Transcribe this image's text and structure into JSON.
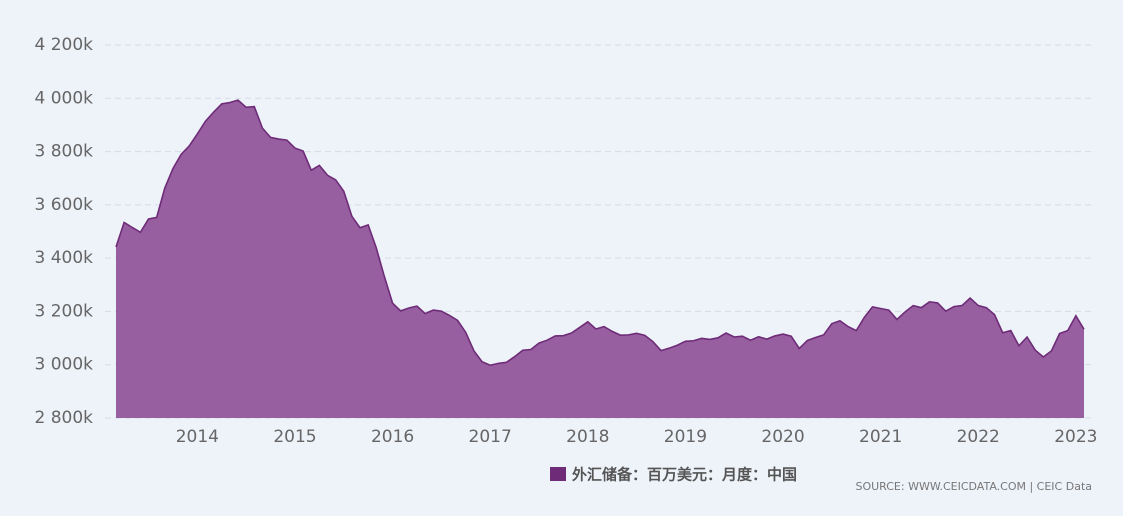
{
  "chart_data": {
    "type": "area",
    "categories": [
      null,
      null,
      null,
      null,
      null,
      null,
      null,
      null,
      null,
      null,
      "2014",
      null,
      null,
      null,
      null,
      null,
      null,
      null,
      null,
      null,
      null,
      null,
      "2015",
      null,
      null,
      null,
      null,
      null,
      null,
      null,
      null,
      null,
      null,
      null,
      "2016",
      null,
      null,
      null,
      null,
      null,
      null,
      null,
      null,
      null,
      null,
      null,
      "2017",
      null,
      null,
      null,
      null,
      null,
      null,
      null,
      null,
      null,
      null,
      null,
      "2018",
      null,
      null,
      null,
      null,
      null,
      null,
      null,
      null,
      null,
      null,
      null,
      "2019",
      null,
      null,
      null,
      null,
      null,
      null,
      null,
      null,
      null,
      null,
      null,
      "2020",
      null,
      null,
      null,
      null,
      null,
      null,
      null,
      null,
      null,
      null,
      null,
      "2021",
      null,
      null,
      null,
      null,
      null,
      null,
      null,
      null,
      null,
      null,
      null,
      "2022",
      null,
      null,
      null,
      null,
      null,
      null,
      null,
      null,
      null,
      null,
      null,
      "2023",
      null
    ],
    "series": [
      {
        "name": "外汇储备：百万美元：月度：中国",
        "color": "#975fa0",
        "line_color": "#6e2c78",
        "values": [
          3442000,
          3534000,
          3515000,
          3497000,
          3547000,
          3553000,
          3663000,
          3736000,
          3789000,
          3821000,
          3866000,
          3914000,
          3948000,
          3979000,
          3984000,
          3993000,
          3966000,
          3969000,
          3888000,
          3853000,
          3847000,
          3843000,
          3813000,
          3802000,
          3730000,
          3748000,
          3711000,
          3694000,
          3651000,
          3557000,
          3514000,
          3525000,
          3438000,
          3330000,
          3231000,
          3202000,
          3213000,
          3220000,
          3192000,
          3205000,
          3201000,
          3185000,
          3166000,
          3121000,
          3052000,
          3011000,
          2998000,
          3005000,
          3009000,
          3030000,
          3054000,
          3057000,
          3081000,
          3092000,
          3108000,
          3109000,
          3119000,
          3140000,
          3161000,
          3134000,
          3143000,
          3125000,
          3111000,
          3112000,
          3118000,
          3110000,
          3087000,
          3053000,
          3062000,
          3073000,
          3088000,
          3090000,
          3099000,
          3095000,
          3101000,
          3119000,
          3104000,
          3107000,
          3092000,
          3105000,
          3096000,
          3108000,
          3115000,
          3107000,
          3061000,
          3091000,
          3102000,
          3112000,
          3154000,
          3165000,
          3143000,
          3128000,
          3178000,
          3217000,
          3211000,
          3205000,
          3170000,
          3198000,
          3222000,
          3214000,
          3236000,
          3232000,
          3201000,
          3218000,
          3222000,
          3250000,
          3222000,
          3214000,
          3188000,
          3120000,
          3128000,
          3071000,
          3104000,
          3055000,
          3029000,
          3052000,
          3117000,
          3128000,
          3184000,
          3133000
        ]
      }
    ],
    "ylim": [
      2800000,
      4200000
    ],
    "yticks": [
      {
        "value": 2800000,
        "label": "2 800k"
      },
      {
        "value": 3000000,
        "label": "3 000k"
      },
      {
        "value": 3200000,
        "label": "3 200k"
      },
      {
        "value": 3400000,
        "label": "3 400k"
      },
      {
        "value": 3600000,
        "label": "3 600k"
      },
      {
        "value": 3800000,
        "label": "3 800k"
      },
      {
        "value": 4000000,
        "label": "4 000k"
      },
      {
        "value": 4200000,
        "label": "4 200k"
      }
    ],
    "grid": true,
    "source": "SOURCE: WWW.CEICDATA.COM | CEIC Data"
  }
}
